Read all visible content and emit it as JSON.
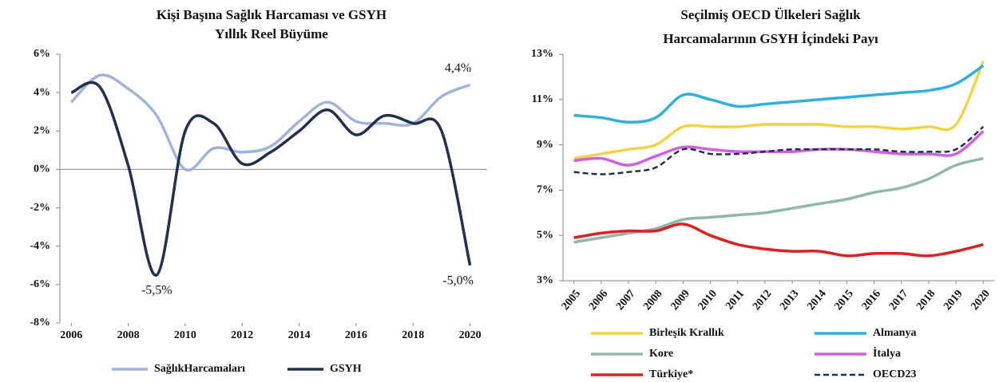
{
  "chart_data": [
    {
      "type": "line",
      "title": "Kişi Başına Sağlık Harcaması ve GSYH",
      "subtitle": "Yıllık Reel Büyüme",
      "x": [
        2006,
        2007,
        2008,
        2009,
        2010,
        2011,
        2012,
        2013,
        2014,
        2015,
        2016,
        2017,
        2018,
        2019,
        2020
      ],
      "series": [
        {
          "name": "SağlıkHarcamaları",
          "color": "#9fb4dc",
          "label_color": "#808080",
          "values": [
            3.5,
            4.9,
            4.2,
            2.8,
            0.0,
            1.1,
            0.9,
            1.2,
            2.5,
            3.5,
            2.5,
            2.4,
            2.4,
            3.8,
            4.4
          ],
          "value_labels": [
            null,
            null,
            null,
            null,
            null,
            null,
            null,
            null,
            null,
            null,
            null,
            null,
            null,
            null,
            "4,4%"
          ]
        },
        {
          "name": "GSYH",
          "color": "#1f3050",
          "label_color": "#e02020",
          "values": [
            4.0,
            4.3,
            0.2,
            -5.5,
            2.0,
            2.4,
            0.3,
            0.9,
            2.0,
            3.1,
            1.8,
            2.8,
            2.4,
            2.0,
            -5.0
          ],
          "value_labels": [
            null,
            null,
            null,
            "-5,5%",
            null,
            null,
            null,
            null,
            null,
            null,
            null,
            null,
            null,
            null,
            "-5,0%"
          ]
        }
      ],
      "xlim": [
        2005.6,
        2020.6
      ],
      "xticks": [
        2006,
        2008,
        2010,
        2012,
        2014,
        2016,
        2018,
        2020
      ],
      "ylim": [
        -8,
        6
      ],
      "yticks": [
        {
          "value": -8,
          "label": "-8%"
        },
        {
          "value": -6,
          "label": "-6%"
        },
        {
          "value": -4,
          "label": "-4%"
        },
        {
          "value": -2,
          "label": "-2%"
        },
        {
          "value": 0,
          "label": "0%"
        },
        {
          "value": 2,
          "label": "2%"
        },
        {
          "value": 4,
          "label": "4%"
        },
        {
          "value": 6,
          "label": "6%"
        }
      ],
      "grid": false,
      "legend": "bottom"
    },
    {
      "type": "line",
      "title": "Seçilmiş OECD Ülkeleri Sağlık",
      "subtitle": "Harcamalarının GSYH İçindeki Payı",
      "x": [
        2005,
        2006,
        2007,
        2008,
        2009,
        2010,
        2011,
        2012,
        2013,
        2014,
        2015,
        2016,
        2017,
        2018,
        2019,
        2020
      ],
      "series": [
        {
          "name": "Birleşik Krallık",
          "color": "#f2d443",
          "values": [
            8.4,
            8.6,
            8.8,
            9.0,
            9.8,
            9.8,
            9.8,
            9.9,
            9.9,
            9.9,
            9.8,
            9.8,
            9.7,
            9.8,
            9.9,
            12.7
          ]
        },
        {
          "name": "Almanya",
          "color": "#2eb0e0",
          "values": [
            10.3,
            10.2,
            10.0,
            10.2,
            11.2,
            11.0,
            10.7,
            10.8,
            10.9,
            11.0,
            11.1,
            11.2,
            11.3,
            11.4,
            11.7,
            12.5
          ]
        },
        {
          "name": "Kore",
          "color": "#8fb8a8",
          "values": [
            4.7,
            4.9,
            5.1,
            5.3,
            5.7,
            5.8,
            5.9,
            6.0,
            6.2,
            6.4,
            6.6,
            6.9,
            7.1,
            7.5,
            8.1,
            8.4
          ]
        },
        {
          "name": "İtalya",
          "color": "#d060e0",
          "values": [
            8.3,
            8.4,
            8.1,
            8.5,
            8.9,
            8.8,
            8.7,
            8.7,
            8.7,
            8.8,
            8.8,
            8.7,
            8.6,
            8.6,
            8.6,
            9.6
          ]
        },
        {
          "name": "Türkiye*",
          "color": "#e02020",
          "values": [
            4.9,
            5.1,
            5.2,
            5.2,
            5.5,
            5.0,
            4.6,
            4.4,
            4.3,
            4.3,
            4.1,
            4.2,
            4.2,
            4.1,
            4.3,
            4.6
          ]
        },
        {
          "name": "OECD23",
          "color": "#1f3050",
          "dash": true,
          "values": [
            7.8,
            7.7,
            7.8,
            8.0,
            8.8,
            8.6,
            8.6,
            8.7,
            8.8,
            8.8,
            8.8,
            8.8,
            8.7,
            8.7,
            8.8,
            9.8
          ]
        }
      ],
      "xlim": [
        2004.6,
        2020.4
      ],
      "xticks": [
        2005,
        2006,
        2007,
        2008,
        2009,
        2010,
        2011,
        2012,
        2013,
        2014,
        2015,
        2016,
        2017,
        2018,
        2019,
        2020
      ],
      "ylim": [
        3,
        13
      ],
      "yticks": [
        {
          "value": 3,
          "label": "3%"
        },
        {
          "value": 5,
          "label": "5%"
        },
        {
          "value": 7,
          "label": "7%"
        },
        {
          "value": 9,
          "label": "9%"
        },
        {
          "value": 11,
          "label": "11%"
        },
        {
          "value": 13,
          "label": "13%"
        }
      ],
      "grid": false,
      "legend": "bottom"
    }
  ]
}
